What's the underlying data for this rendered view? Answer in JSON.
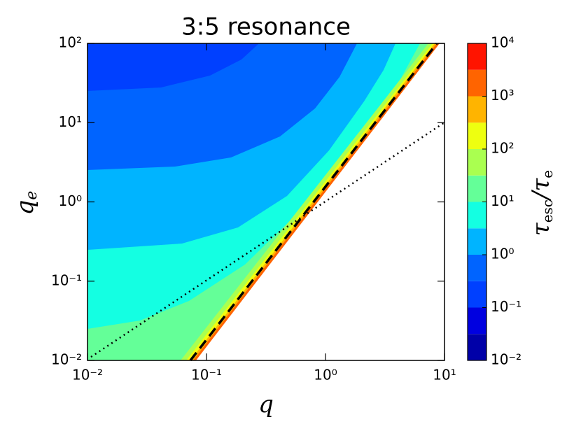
{
  "chart_data": {
    "type": "contour",
    "title": "3:5 resonance",
    "xlabel": "q",
    "ylabel": {
      "base": "q",
      "sub": "e"
    },
    "xscale": "log",
    "yscale": "log",
    "xlim": [
      0.01,
      10
    ],
    "ylim": [
      0.01,
      100
    ],
    "xticks": [
      {
        "value": 0.01,
        "label": "10⁻²"
      },
      {
        "value": 0.1,
        "label": "10⁻¹"
      },
      {
        "value": 1,
        "label": "10⁰"
      },
      {
        "value": 10,
        "label": "10¹"
      }
    ],
    "yticks": [
      {
        "value": 0.01,
        "label": "10⁻²"
      },
      {
        "value": 0.1,
        "label": "10⁻¹"
      },
      {
        "value": 1,
        "label": "10⁰"
      },
      {
        "value": 10,
        "label": "10¹"
      },
      {
        "value": 100,
        "label": "10²"
      }
    ],
    "colorbar": {
      "scale": "log",
      "levels": [
        0.01,
        0.0316,
        0.1,
        0.316,
        1,
        3.16,
        10,
        31.6,
        100,
        316,
        1000,
        3162,
        10000
      ],
      "colors": [
        "#0000a8",
        "#0000e0",
        "#0040ff",
        "#0064ff",
        "#00b4ff",
        "#14ffe2",
        "#64ff98",
        "#aaff50",
        "#eeff10",
        "#ffb400",
        "#ff6400",
        "#ff1400",
        "#a00000"
      ],
      "ticks": [
        {
          "value": 0.01,
          "label": "10⁻²"
        },
        {
          "value": 0.1,
          "label": "10⁻¹"
        },
        {
          "value": 1,
          "label": "10⁰"
        },
        {
          "value": 10,
          "label": "10¹"
        },
        {
          "value": 100,
          "label": "10²"
        },
        {
          "value": 1000,
          "label": "10³"
        },
        {
          "value": 10000,
          "label": "10⁴"
        }
      ],
      "label": [
        {
          "t": "τ"
        },
        {
          "sub": "esc"
        },
        {
          "t": "/τ"
        },
        {
          "sub": "e"
        }
      ]
    }
  }
}
